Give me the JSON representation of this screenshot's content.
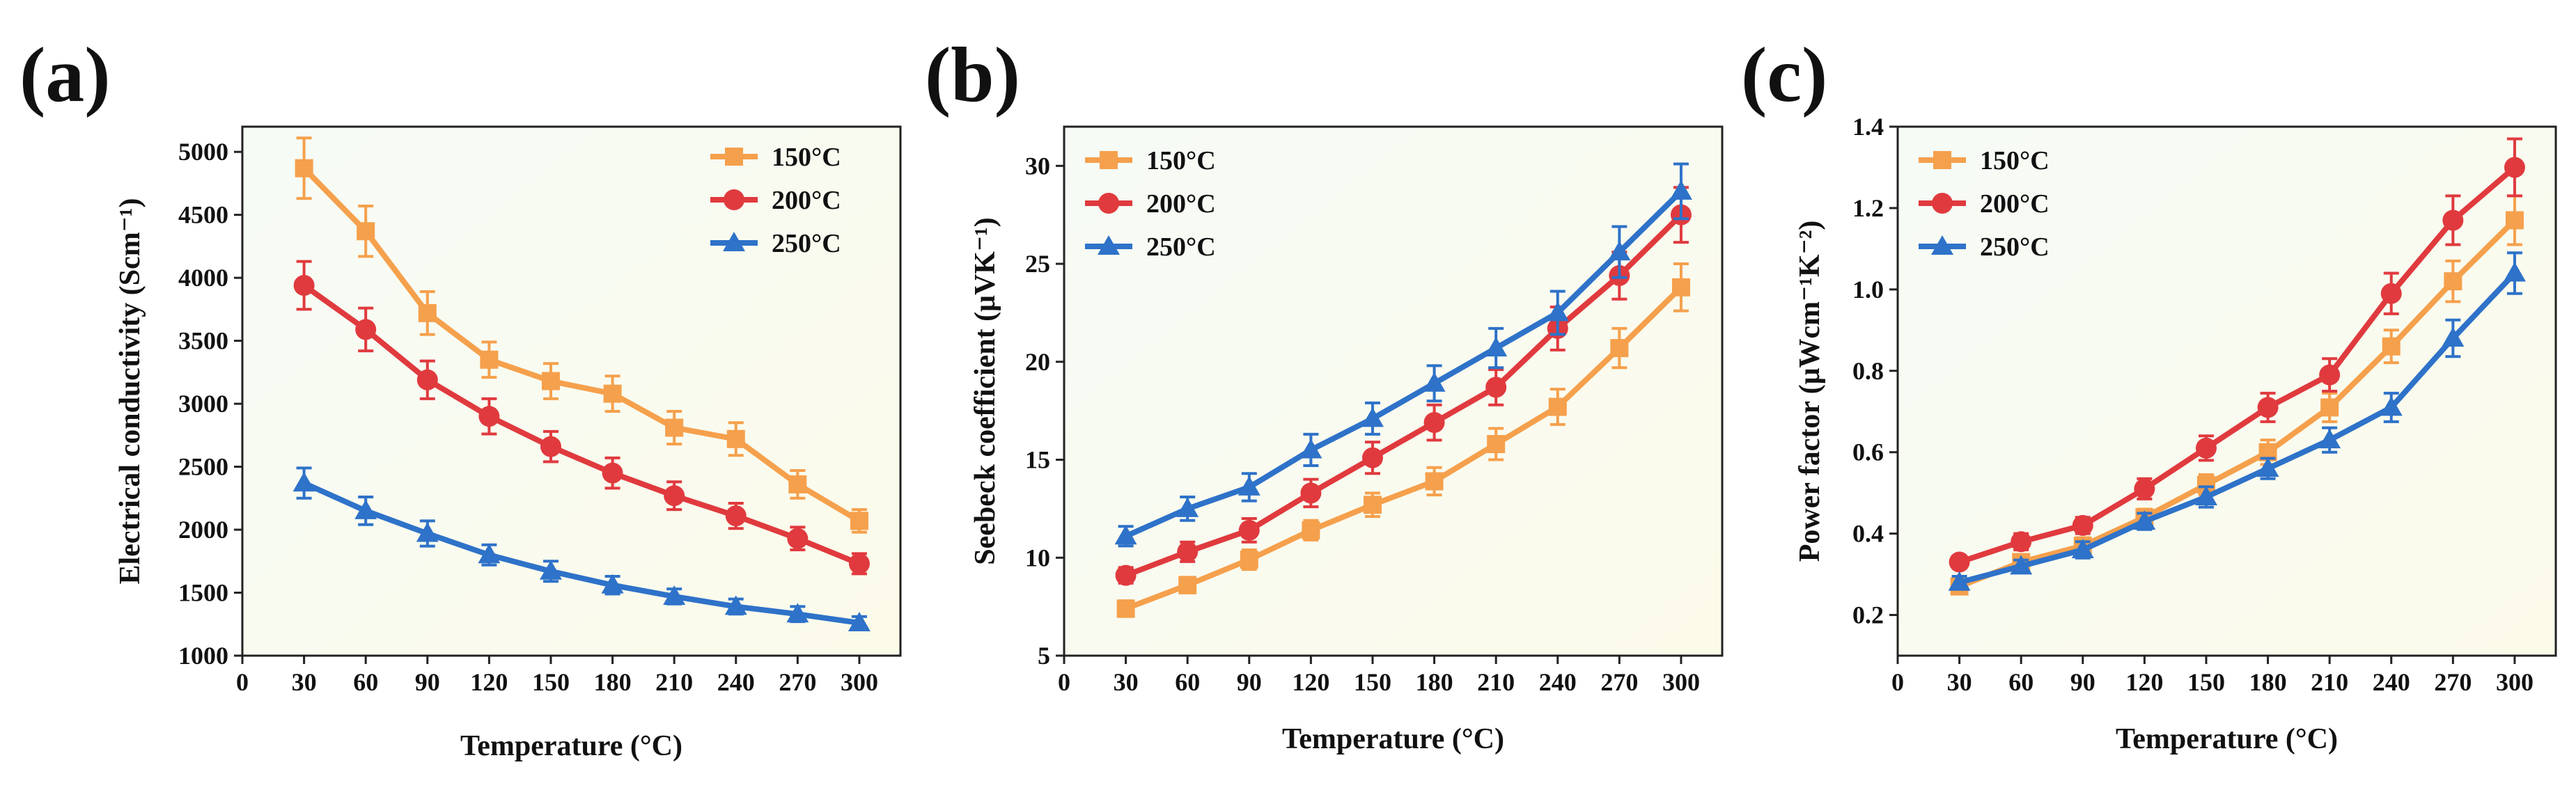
{
  "figure": {
    "colors": {
      "s150": "#F5A04C",
      "s200": "#E03A3E",
      "s250": "#2E72C9"
    }
  },
  "chart_data": [
    {
      "type": "line",
      "panel_label": "(a)",
      "xlabel": "Temperature (°C)",
      "ylabel": "Electrical conductivity (Scm⁻¹)",
      "xlim": [
        0,
        320
      ],
      "ylim": [
        1000,
        5200
      ],
      "xticks": [
        0,
        30,
        60,
        90,
        120,
        150,
        180,
        210,
        240,
        270,
        300
      ],
      "yticks": [
        1000,
        1500,
        2000,
        2500,
        3000,
        3500,
        4000,
        4500,
        5000
      ],
      "x": [
        30,
        60,
        90,
        120,
        150,
        180,
        210,
        240,
        270,
        300
      ],
      "legend_position": "top-right",
      "series": [
        {
          "name": "150°C",
          "marker": "square",
          "color": "#F5A04C",
          "values": [
            4870,
            4370,
            3720,
            3350,
            3180,
            3080,
            2810,
            2720,
            2360,
            2070
          ],
          "errors": [
            240,
            200,
            170,
            140,
            140,
            140,
            130,
            130,
            110,
            90
          ]
        },
        {
          "name": "200°C",
          "marker": "circle",
          "color": "#E03A3E",
          "values": [
            3940,
            3590,
            3190,
            2900,
            2660,
            2450,
            2270,
            2110,
            1930,
            1730
          ],
          "errors": [
            190,
            170,
            150,
            140,
            120,
            120,
            110,
            100,
            90,
            80
          ]
        },
        {
          "name": "250°C",
          "marker": "triangle",
          "color": "#2E72C9",
          "values": [
            2370,
            2150,
            1970,
            1800,
            1670,
            1560,
            1470,
            1390,
            1330,
            1260
          ],
          "errors": [
            120,
            110,
            100,
            80,
            80,
            70,
            60,
            60,
            60,
            50
          ]
        }
      ]
    },
    {
      "type": "line",
      "panel_label": "(b)",
      "xlabel": "Temperature (°C)",
      "ylabel": "Seebeck coefficient (μVK⁻¹)",
      "xlim": [
        0,
        320
      ],
      "ylim": [
        5,
        32
      ],
      "xticks": [
        0,
        30,
        60,
        90,
        120,
        150,
        180,
        210,
        240,
        270,
        300
      ],
      "yticks": [
        5,
        10,
        15,
        20,
        25,
        30
      ],
      "x": [
        30,
        60,
        90,
        120,
        150,
        180,
        210,
        240,
        270,
        300
      ],
      "legend_position": "top-left",
      "series": [
        {
          "name": "150°C",
          "marker": "square",
          "color": "#F5A04C",
          "values": [
            7.4,
            8.6,
            9.9,
            11.4,
            12.7,
            13.9,
            15.8,
            17.7,
            20.7,
            23.8
          ],
          "errors": [
            0.4,
            0.4,
            0.5,
            0.5,
            0.6,
            0.7,
            0.8,
            0.9,
            1.0,
            1.2
          ]
        },
        {
          "name": "200°C",
          "marker": "circle",
          "color": "#E03A3E",
          "values": [
            9.1,
            10.3,
            11.4,
            13.3,
            15.1,
            16.9,
            18.7,
            21.7,
            24.4,
            27.5
          ],
          "errors": [
            0.4,
            0.5,
            0.6,
            0.7,
            0.8,
            0.9,
            0.9,
            1.1,
            1.2,
            1.4
          ]
        },
        {
          "name": "250°C",
          "marker": "triangle",
          "color": "#2E72C9",
          "values": [
            11.1,
            12.5,
            13.6,
            15.5,
            17.1,
            18.9,
            20.7,
            22.5,
            25.6,
            28.7
          ],
          "errors": [
            0.5,
            0.6,
            0.7,
            0.8,
            0.8,
            0.9,
            1.0,
            1.1,
            1.3,
            1.4
          ]
        }
      ]
    },
    {
      "type": "line",
      "panel_label": "(c)",
      "xlabel": "Temperature (°C)",
      "ylabel": "Power factor (μWcm⁻¹K⁻²)",
      "xlim": [
        0,
        320
      ],
      "ylim": [
        0.1,
        1.4
      ],
      "xticks": [
        0,
        30,
        60,
        90,
        120,
        150,
        180,
        210,
        240,
        270,
        300
      ],
      "yticks": [
        0.2,
        0.4,
        0.6,
        0.8,
        1.0,
        1.2,
        1.4
      ],
      "ytick_labels": [
        "0.2",
        "0.4",
        "0.6",
        "0.8",
        "1.0",
        "1.2",
        "1.4"
      ],
      "x": [
        30,
        60,
        90,
        120,
        150,
        180,
        210,
        240,
        270,
        300
      ],
      "legend_position": "top-left",
      "series": [
        {
          "name": "150°C",
          "marker": "square",
          "color": "#F5A04C",
          "values": [
            0.27,
            0.33,
            0.37,
            0.44,
            0.52,
            0.6,
            0.71,
            0.86,
            1.02,
            1.17
          ],
          "errors": [
            0.015,
            0.015,
            0.02,
            0.02,
            0.025,
            0.03,
            0.035,
            0.04,
            0.05,
            0.06
          ]
        },
        {
          "name": "200°C",
          "marker": "circle",
          "color": "#E03A3E",
          "values": [
            0.33,
            0.38,
            0.42,
            0.51,
            0.61,
            0.71,
            0.79,
            0.99,
            1.17,
            1.3
          ],
          "errors": [
            0.015,
            0.02,
            0.02,
            0.025,
            0.03,
            0.035,
            0.04,
            0.05,
            0.06,
            0.07
          ]
        },
        {
          "name": "250°C",
          "marker": "triangle",
          "color": "#2E72C9",
          "values": [
            0.28,
            0.32,
            0.36,
            0.43,
            0.49,
            0.56,
            0.63,
            0.71,
            0.88,
            1.04
          ],
          "errors": [
            0.015,
            0.015,
            0.02,
            0.02,
            0.025,
            0.025,
            0.03,
            0.035,
            0.045,
            0.05
          ]
        }
      ]
    }
  ]
}
